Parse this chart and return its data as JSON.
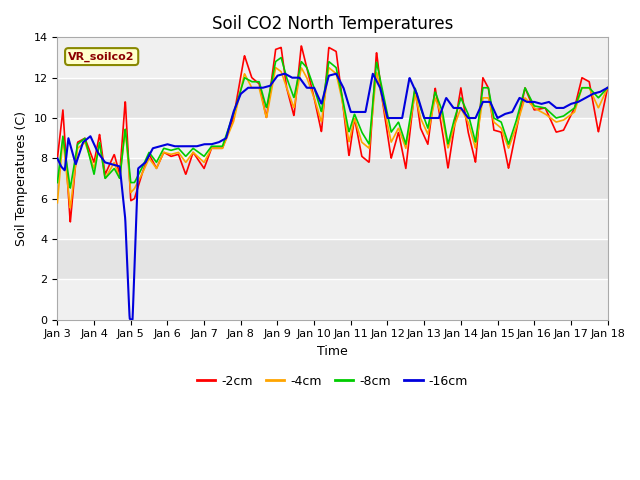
{
  "title": "Soil CO2 North Temperatures",
  "ylabel": "Soil Temperatures (C)",
  "xlabel": "Time",
  "annotation": "VR_soilco2",
  "ylim": [
    0,
    14
  ],
  "xtick_labels": [
    "Jan 3",
    "Jan 4",
    "Jan 5",
    "Jan 6",
    "Jan 7",
    "Jan 8",
    "Jan 9",
    "Jan 10",
    "Jan 11",
    "Jan 12",
    "Jan 13",
    "Jan 14",
    "Jan 15",
    "Jan 16",
    "Jan 17",
    "Jan 18"
  ],
  "ytick_labels": [
    "0",
    "2",
    "4",
    "6",
    "8",
    "10",
    "12",
    "14"
  ],
  "yticks": [
    0,
    2,
    4,
    6,
    8,
    10,
    12,
    14
  ],
  "colors": {
    "m2cm": "#ff0000",
    "m4cm": "#ffa500",
    "m8cm": "#00cc00",
    "m16cm": "#0000dd"
  },
  "legend_labels": [
    "-2cm",
    "-4cm",
    "-8cm",
    "-16cm"
  ],
  "bg_outer": "#ffffff",
  "bg_inner_light": "#f0f0f0",
  "bg_inner_dark": "#e0e0e0",
  "title_fontsize": 12,
  "axis_label_fontsize": 9,
  "tick_fontsize": 8
}
